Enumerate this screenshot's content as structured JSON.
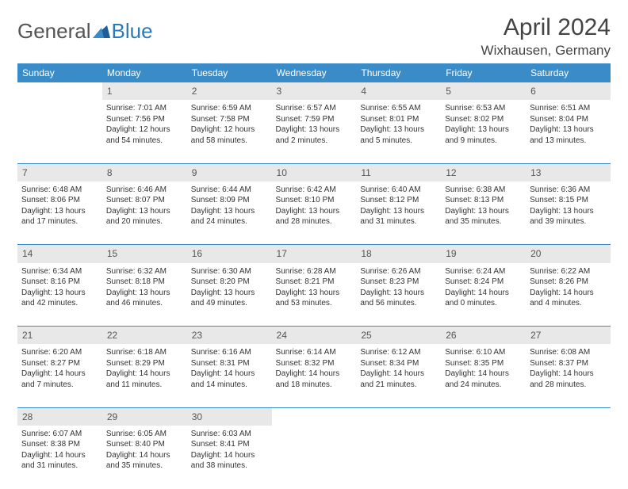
{
  "logo": {
    "part1": "General",
    "part2": "Blue"
  },
  "title": "April 2024",
  "location": "Wixhausen, Germany",
  "colors": {
    "header_bg": "#3a8cc9",
    "header_fg": "#ffffff",
    "daynum_bg": "#e8e8e8",
    "rule": "#3a8cc9",
    "logo_accent": "#2a7ab8",
    "text": "#333333"
  },
  "weekdays": [
    "Sunday",
    "Monday",
    "Tuesday",
    "Wednesday",
    "Thursday",
    "Friday",
    "Saturday"
  ],
  "weeks": [
    {
      "nums": [
        "",
        "1",
        "2",
        "3",
        "4",
        "5",
        "6"
      ],
      "cells": [
        [],
        [
          "Sunrise: 7:01 AM",
          "Sunset: 7:56 PM",
          "Daylight: 12 hours",
          "and 54 minutes."
        ],
        [
          "Sunrise: 6:59 AM",
          "Sunset: 7:58 PM",
          "Daylight: 12 hours",
          "and 58 minutes."
        ],
        [
          "Sunrise: 6:57 AM",
          "Sunset: 7:59 PM",
          "Daylight: 13 hours",
          "and 2 minutes."
        ],
        [
          "Sunrise: 6:55 AM",
          "Sunset: 8:01 PM",
          "Daylight: 13 hours",
          "and 5 minutes."
        ],
        [
          "Sunrise: 6:53 AM",
          "Sunset: 8:02 PM",
          "Daylight: 13 hours",
          "and 9 minutes."
        ],
        [
          "Sunrise: 6:51 AM",
          "Sunset: 8:04 PM",
          "Daylight: 13 hours",
          "and 13 minutes."
        ]
      ]
    },
    {
      "nums": [
        "7",
        "8",
        "9",
        "10",
        "11",
        "12",
        "13"
      ],
      "cells": [
        [
          "Sunrise: 6:48 AM",
          "Sunset: 8:06 PM",
          "Daylight: 13 hours",
          "and 17 minutes."
        ],
        [
          "Sunrise: 6:46 AM",
          "Sunset: 8:07 PM",
          "Daylight: 13 hours",
          "and 20 minutes."
        ],
        [
          "Sunrise: 6:44 AM",
          "Sunset: 8:09 PM",
          "Daylight: 13 hours",
          "and 24 minutes."
        ],
        [
          "Sunrise: 6:42 AM",
          "Sunset: 8:10 PM",
          "Daylight: 13 hours",
          "and 28 minutes."
        ],
        [
          "Sunrise: 6:40 AM",
          "Sunset: 8:12 PM",
          "Daylight: 13 hours",
          "and 31 minutes."
        ],
        [
          "Sunrise: 6:38 AM",
          "Sunset: 8:13 PM",
          "Daylight: 13 hours",
          "and 35 minutes."
        ],
        [
          "Sunrise: 6:36 AM",
          "Sunset: 8:15 PM",
          "Daylight: 13 hours",
          "and 39 minutes."
        ]
      ]
    },
    {
      "nums": [
        "14",
        "15",
        "16",
        "17",
        "18",
        "19",
        "20"
      ],
      "cells": [
        [
          "Sunrise: 6:34 AM",
          "Sunset: 8:16 PM",
          "Daylight: 13 hours",
          "and 42 minutes."
        ],
        [
          "Sunrise: 6:32 AM",
          "Sunset: 8:18 PM",
          "Daylight: 13 hours",
          "and 46 minutes."
        ],
        [
          "Sunrise: 6:30 AM",
          "Sunset: 8:20 PM",
          "Daylight: 13 hours",
          "and 49 minutes."
        ],
        [
          "Sunrise: 6:28 AM",
          "Sunset: 8:21 PM",
          "Daylight: 13 hours",
          "and 53 minutes."
        ],
        [
          "Sunrise: 6:26 AM",
          "Sunset: 8:23 PM",
          "Daylight: 13 hours",
          "and 56 minutes."
        ],
        [
          "Sunrise: 6:24 AM",
          "Sunset: 8:24 PM",
          "Daylight: 14 hours",
          "and 0 minutes."
        ],
        [
          "Sunrise: 6:22 AM",
          "Sunset: 8:26 PM",
          "Daylight: 14 hours",
          "and 4 minutes."
        ]
      ]
    },
    {
      "nums": [
        "21",
        "22",
        "23",
        "24",
        "25",
        "26",
        "27"
      ],
      "cells": [
        [
          "Sunrise: 6:20 AM",
          "Sunset: 8:27 PM",
          "Daylight: 14 hours",
          "and 7 minutes."
        ],
        [
          "Sunrise: 6:18 AM",
          "Sunset: 8:29 PM",
          "Daylight: 14 hours",
          "and 11 minutes."
        ],
        [
          "Sunrise: 6:16 AM",
          "Sunset: 8:31 PM",
          "Daylight: 14 hours",
          "and 14 minutes."
        ],
        [
          "Sunrise: 6:14 AM",
          "Sunset: 8:32 PM",
          "Daylight: 14 hours",
          "and 18 minutes."
        ],
        [
          "Sunrise: 6:12 AM",
          "Sunset: 8:34 PM",
          "Daylight: 14 hours",
          "and 21 minutes."
        ],
        [
          "Sunrise: 6:10 AM",
          "Sunset: 8:35 PM",
          "Daylight: 14 hours",
          "and 24 minutes."
        ],
        [
          "Sunrise: 6:08 AM",
          "Sunset: 8:37 PM",
          "Daylight: 14 hours",
          "and 28 minutes."
        ]
      ]
    },
    {
      "nums": [
        "28",
        "29",
        "30",
        "",
        "",
        "",
        ""
      ],
      "cells": [
        [
          "Sunrise: 6:07 AM",
          "Sunset: 8:38 PM",
          "Daylight: 14 hours",
          "and 31 minutes."
        ],
        [
          "Sunrise: 6:05 AM",
          "Sunset: 8:40 PM",
          "Daylight: 14 hours",
          "and 35 minutes."
        ],
        [
          "Sunrise: 6:03 AM",
          "Sunset: 8:41 PM",
          "Daylight: 14 hours",
          "and 38 minutes."
        ],
        [],
        [],
        [],
        []
      ]
    }
  ]
}
